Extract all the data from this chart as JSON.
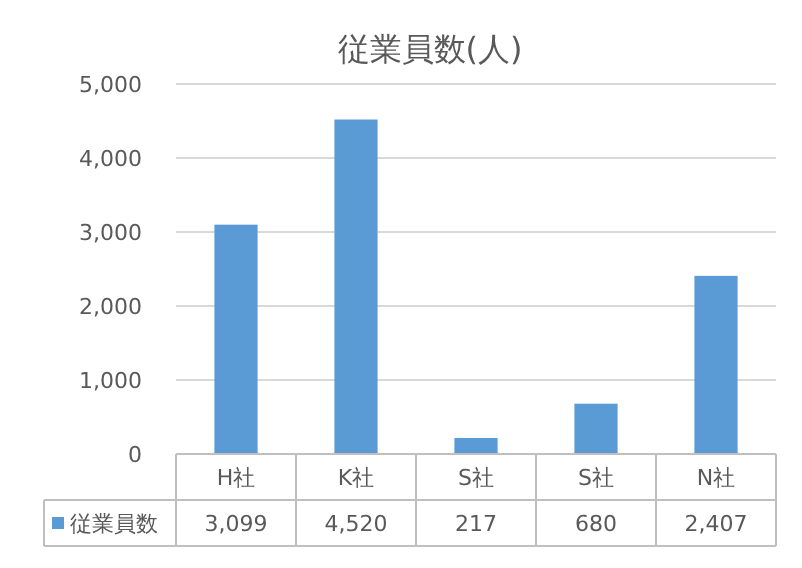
{
  "chart_data": {
    "type": "bar",
    "title": "従業員数(人)",
    "categories": [
      "H社",
      "K社",
      "S社",
      "S社",
      "N社"
    ],
    "series": [
      {
        "name": "従業員数",
        "color": "#5b9bd5",
        "values": [
          3099,
          4520,
          217,
          680,
          2407
        ],
        "value_labels": [
          "3,099",
          "4,520",
          "217",
          "680",
          "2,407"
        ]
      }
    ],
    "ylim": [
      0,
      5000
    ],
    "yticks": [
      {
        "value": 0,
        "label": "0"
      },
      {
        "value": 1000,
        "label": "1,000"
      },
      {
        "value": 2000,
        "label": "2,000"
      },
      {
        "value": 3000,
        "label": "3,000"
      },
      {
        "value": 4000,
        "label": "4,000"
      },
      {
        "value": 5000,
        "label": "5,000"
      }
    ],
    "grid": "y",
    "legend": "bottom"
  }
}
